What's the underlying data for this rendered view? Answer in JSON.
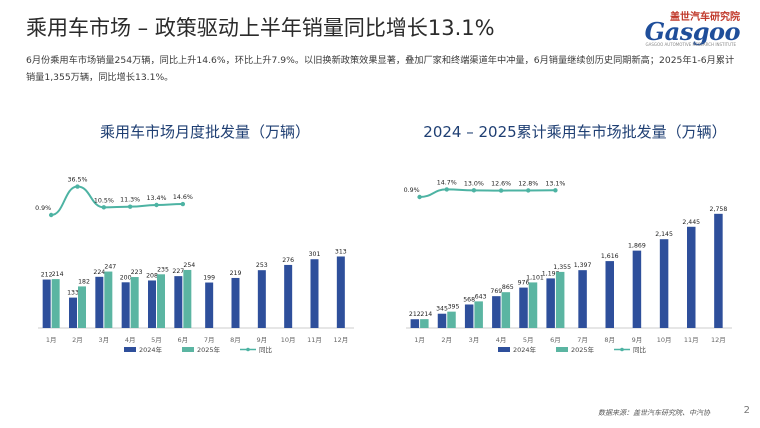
{
  "page": {
    "title": "乘用车市场 – 政策驱动上半年销量同比增长13.1%",
    "description": "6月份乘用车市场销量254万辆，同比上升14.6%，环比上升7.9%。以旧换新政策效果显著，叠加厂家和终端渠道年中冲量，6月销量继续创历史同期新高；2025年1-6月累计销量1,355万辆，同比增长13.1%。",
    "source": "数据来源：盖世汽车研究院、中汽协",
    "page_number": "2",
    "logo": {
      "top": "盖世汽车研究院",
      "word": "Gasgoo",
      "sub": "GASGOO AUTOMOTIVE RESEARCH INSTITUTE"
    }
  },
  "colors": {
    "s2024": "#2e4f9b",
    "s2025": "#5bb5a2",
    "yoy": "#4db3a3",
    "axis": "#bbbbbb"
  },
  "chart_data": [
    {
      "type": "bar",
      "title": "乘用车市场月度批发量（万辆）",
      "categories": [
        "1月",
        "2月",
        "3月",
        "4月",
        "5月",
        "6月",
        "7月",
        "8月",
        "9月",
        "10月",
        "11月",
        "12月"
      ],
      "series": [
        {
          "name": "2024年",
          "values": [
            212,
            133,
            224,
            200,
            208,
            227,
            199,
            219,
            253,
            276,
            301,
            313
          ]
        },
        {
          "name": "2025年",
          "values": [
            214,
            182,
            247,
            223,
            235,
            254,
            null,
            null,
            null,
            null,
            null,
            null
          ]
        }
      ],
      "line": {
        "name": "同比",
        "values": [
          0.9,
          36.5,
          10.5,
          11.3,
          13.4,
          14.6
        ],
        "labels": [
          "0.9%",
          "36.5%",
          "10.5%",
          "11.3%",
          "13.4%",
          "14.6%"
        ]
      },
      "value_labels_2024": [
        "212",
        "133",
        "224",
        "200",
        "208",
        "227",
        "199",
        "219",
        "253",
        "276",
        "301",
        "313"
      ],
      "value_labels_2025": [
        "214",
        "182",
        "247",
        "223",
        "235",
        "254"
      ],
      "legend": [
        "2024年",
        "2025年",
        "同比"
      ]
    },
    {
      "type": "bar",
      "title": "2024 – 2025累计乘用车市场批发量（万辆）",
      "categories": [
        "1月",
        "2月",
        "3月",
        "4月",
        "5月",
        "6月",
        "7月",
        "8月",
        "9月",
        "10月",
        "11月",
        "12月"
      ],
      "series": [
        {
          "name": "2024年",
          "values": [
            212,
            345,
            568,
            769,
            976,
            1198,
            1397,
            1616,
            1869,
            2145,
            2445,
            2758
          ]
        },
        {
          "name": "2025年",
          "values": [
            214,
            395,
            643,
            865,
            1101,
            1355,
            null,
            null,
            null,
            null,
            null,
            null
          ]
        }
      ],
      "line": {
        "name": "同比",
        "values": [
          0.9,
          14.7,
          13.0,
          12.6,
          12.8,
          13.1
        ],
        "labels": [
          "0.9%",
          "14.7%",
          "13.0%",
          "12.6%",
          "12.8%",
          "13.1%"
        ]
      },
      "value_labels_2024": [
        "212",
        "345",
        "568",
        "769",
        "976",
        "1,198",
        "1,397",
        "1,616",
        "1,869",
        "2,145",
        "2,445",
        "2,758"
      ],
      "value_labels_2025": [
        "214",
        "395",
        "643",
        "865",
        "1,101",
        "1,355"
      ],
      "legend": [
        "2024年",
        "2025年",
        "同比"
      ]
    }
  ]
}
